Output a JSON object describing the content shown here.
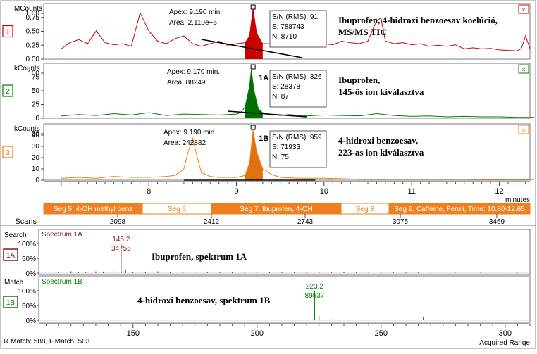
{
  "chart_data": {
    "type": "line",
    "panels": [
      {
        "id": "1",
        "ylabel": "MCounts",
        "yticks": [
          "1.00",
          "0.75",
          "0.50",
          "0.25",
          "0.00"
        ],
        "ylim": [
          0,
          1.0
        ],
        "color": "#d00000",
        "fill_color": "#cc0000",
        "apex_label": "Apex: 9.190 min.",
        "area_label": "Area: 2,110e+6",
        "stats": [
          "S/N (RMS): 91",
          "S: 788743",
          "N: 8710"
        ],
        "desc": [
          "Ibuprofen, 4-hidroxi benzoesav koelúció,",
          "MS/MS TIC"
        ],
        "peak_label": "",
        "x": [
          7.0,
          7.1,
          7.2,
          7.3,
          7.4,
          7.5,
          7.6,
          7.7,
          7.8,
          7.9,
          8.0,
          8.1,
          8.2,
          8.3,
          8.4,
          8.5,
          8.6,
          8.7,
          8.8,
          8.9,
          9.0,
          9.1,
          9.15,
          9.19,
          9.23,
          9.3,
          9.4,
          9.5,
          9.6,
          9.7,
          9.8,
          9.9,
          10.0,
          10.1,
          10.2,
          10.3,
          10.4,
          10.5,
          10.6,
          10.65,
          10.7,
          10.8,
          10.9,
          11.0,
          11.1,
          11.2,
          11.3,
          11.4,
          11.5,
          11.6,
          11.7,
          11.8,
          11.9,
          12.0,
          12.1,
          12.2,
          12.25,
          12.3,
          12.35
        ],
        "y": [
          0.2,
          0.32,
          0.38,
          0.3,
          0.55,
          0.32,
          0.28,
          0.3,
          0.25,
          0.9,
          0.55,
          0.35,
          0.3,
          0.4,
          0.45,
          0.3,
          0.25,
          0.3,
          0.35,
          0.27,
          0.3,
          0.32,
          0.45,
          0.98,
          0.5,
          0.3,
          0.3,
          0.32,
          0.27,
          0.25,
          0.28,
          0.35,
          0.3,
          0.28,
          0.35,
          0.32,
          0.3,
          0.35,
          0.75,
          0.8,
          0.35,
          0.3,
          0.32,
          0.28,
          0.3,
          0.25,
          0.27,
          0.25,
          0.28,
          0.2,
          0.22,
          0.2,
          0.21,
          0.18,
          0.17,
          0.16,
          0.2,
          0.45,
          0.2
        ]
      },
      {
        "id": "2",
        "ylabel": "kCounts",
        "yticks": [
          "100",
          "75",
          "50",
          "25",
          "0"
        ],
        "ylim": [
          0,
          110
        ],
        "color": "#008000",
        "fill_color": "#007000",
        "apex_label": "Apex: 9.170 min.",
        "area_label": "Area: 88249",
        "stats": [
          "S/N (RMS): 326",
          "S: 28378",
          "N: 87"
        ],
        "desc": [
          "Ibuprofen,",
          "145-ös ion kiválasztva"
        ],
        "peak_label": "1A",
        "x": [
          7.0,
          7.2,
          7.4,
          7.6,
          7.8,
          8.0,
          8.2,
          8.4,
          8.6,
          8.8,
          9.0,
          9.05,
          9.1,
          9.15,
          9.17,
          9.2,
          9.25,
          9.3,
          9.4,
          9.5,
          9.6,
          9.8,
          10.0,
          10.2,
          10.4,
          10.6,
          10.8,
          11.0,
          11.2,
          11.4,
          11.6,
          11.8,
          12.0,
          12.2,
          12.4
        ],
        "y": [
          5,
          8,
          6,
          10,
          7,
          12,
          6,
          9,
          8,
          7,
          9,
          12,
          25,
          70,
          105,
          60,
          20,
          12,
          8,
          6,
          8,
          5,
          7,
          6,
          5,
          10,
          6,
          4,
          5,
          3,
          4,
          3,
          3,
          2,
          2
        ]
      },
      {
        "id": "3",
        "ylabel": "kCounts",
        "yticks": [
          "50",
          "40",
          "30",
          "20",
          "10",
          "0"
        ],
        "ylim": [
          0,
          55
        ],
        "color": "#f08000",
        "fill_color": "#e07010",
        "apex_label": "Apex: 9.190 min.",
        "area_label": "Area: 242882",
        "stats": [
          "S/N (RMS): 959",
          "S: 71933",
          "N: 75"
        ],
        "desc": [
          "4-hidroxi benzoesav,",
          "223-as ion kiválasztva"
        ],
        "peak_label": "1B",
        "x": [
          7.0,
          7.2,
          7.4,
          7.6,
          7.8,
          8.0,
          8.2,
          8.3,
          8.4,
          8.45,
          8.5,
          8.55,
          8.6,
          8.7,
          8.8,
          9.0,
          9.1,
          9.15,
          9.19,
          9.23,
          9.3,
          9.4,
          9.5,
          9.7,
          10.0,
          10.4,
          10.8,
          11.2,
          11.6,
          12.0,
          12.4
        ],
        "y": [
          2,
          3,
          2,
          4,
          3,
          3,
          4,
          5,
          12,
          30,
          44,
          25,
          8,
          4,
          3,
          3,
          5,
          18,
          53,
          30,
          12,
          6,
          3,
          2,
          2,
          1,
          1,
          1,
          1,
          0.5,
          0.5
        ]
      }
    ],
    "xaxis": {
      "label": "minutes",
      "ticks": [
        8,
        9,
        10,
        11,
        12
      ],
      "xlim": [
        6.8,
        12.35
      ]
    },
    "segments": [
      {
        "label": "Seg 5, 4-OH methyl benz",
        "color": "#f07f1e"
      },
      {
        "label": "Seg 6",
        "color": "#ffffff"
      },
      {
        "label": "Seg 7, Ibuprofen, 4-OH",
        "color": "#f07f1e"
      },
      {
        "label": "Seg 8",
        "color": "#ffffff"
      },
      {
        "label": "Seg 9, Caffeine, Feruli, Time: 10.80-12.65",
        "color": "#f07f1e"
      }
    ],
    "scans": {
      "label": "Scans",
      "values": [
        "2098",
        "2412",
        "2743",
        "3075",
        "3469"
      ]
    },
    "spectra": [
      {
        "side_label": "Search",
        "box_label": "1A",
        "box_color": "#8b1a1a",
        "title": "Spectrum 1A",
        "title_color": "#8b1a1a",
        "yticks": [
          "100%",
          "50%",
          "0%"
        ],
        "desc": "Ibuprofen, spektrum 1A",
        "peak_mz": "145.2",
        "peak_int": "34756",
        "peaks": [
          [
            120,
            5
          ],
          [
            125,
            6
          ],
          [
            128,
            4
          ],
          [
            131,
            3
          ],
          [
            135,
            6
          ],
          [
            138,
            5
          ],
          [
            142,
            8
          ],
          [
            145.2,
            100
          ],
          [
            147,
            12
          ],
          [
            150,
            4
          ],
          [
            155,
            5
          ],
          [
            160,
            6
          ],
          [
            165,
            3
          ],
          [
            170,
            4
          ],
          [
            175,
            3
          ],
          [
            180,
            5
          ],
          [
            185,
            3
          ],
          [
            190,
            4
          ],
          [
            195,
            3
          ],
          [
            200,
            3
          ],
          [
            205,
            4
          ],
          [
            210,
            3
          ],
          [
            215,
            2
          ],
          [
            220,
            4
          ],
          [
            225,
            3
          ],
          [
            230,
            2
          ],
          [
            235,
            3
          ],
          [
            240,
            2
          ],
          [
            245,
            2
          ],
          [
            250,
            3
          ],
          [
            255,
            2
          ],
          [
            260,
            2
          ],
          [
            265,
            2
          ],
          [
            270,
            2
          ],
          [
            280,
            1
          ],
          [
            290,
            1
          ],
          [
            300,
            1
          ],
          [
            305,
            1
          ]
        ]
      },
      {
        "side_label": "Match",
        "box_label": "1B",
        "box_color": "#008000",
        "title": "Spectrum 1B",
        "title_color": "#008000",
        "yticks": [
          "100%",
          "50%",
          "0%"
        ],
        "desc": "4-hidroxi benzoesav, spektrum 1B",
        "peak_mz": "223.2",
        "peak_int": "89537",
        "peaks": [
          [
            120,
            2
          ],
          [
            130,
            2
          ],
          [
            140,
            2
          ],
          [
            150,
            2
          ],
          [
            160,
            2
          ],
          [
            170,
            2
          ],
          [
            180,
            2
          ],
          [
            190,
            2
          ],
          [
            200,
            2
          ],
          [
            210,
            2
          ],
          [
            220,
            3
          ],
          [
            223.2,
            100
          ],
          [
            225,
            15
          ],
          [
            230,
            3
          ],
          [
            240,
            2
          ],
          [
            250,
            2
          ],
          [
            260,
            2
          ],
          [
            267,
            12
          ],
          [
            280,
            1
          ],
          [
            300,
            1
          ]
        ]
      }
    ],
    "spec_xaxis": {
      "ticks": [
        150,
        200,
        250,
        300
      ],
      "xlim": [
        112,
        310
      ]
    },
    "footer": {
      "left": "R.Match: 588, F.Match: 503",
      "right": "Acquired Range"
    }
  }
}
